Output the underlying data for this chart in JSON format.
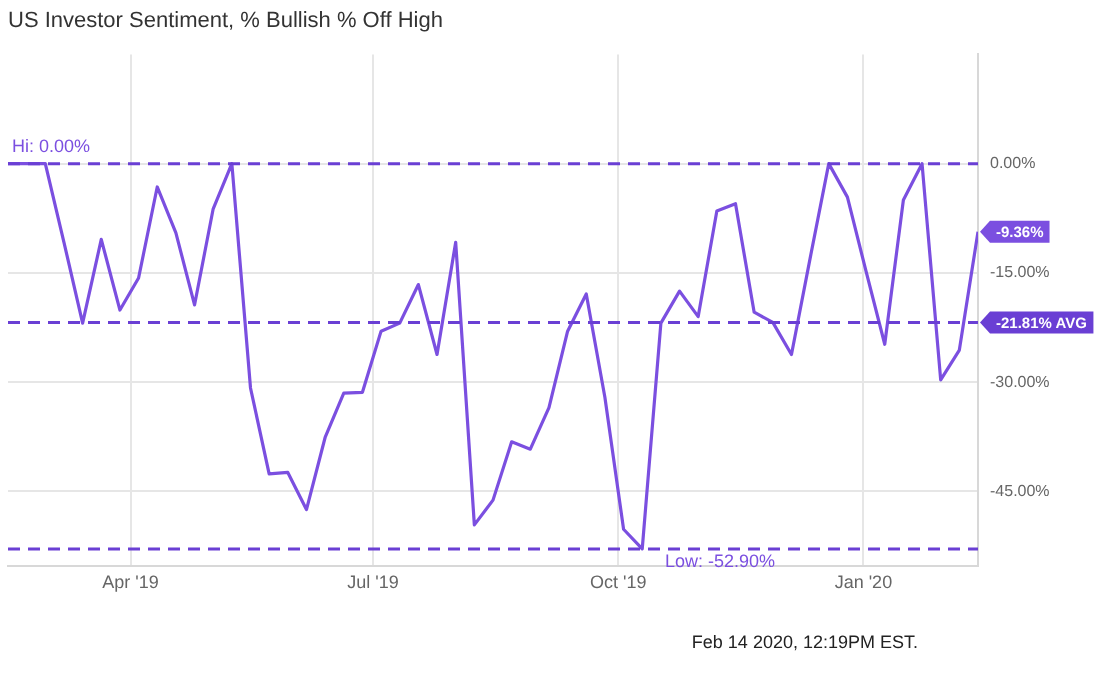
{
  "chart_data": {
    "type": "line",
    "title": "US Investor Sentiment, % Bullish % Off High",
    "x": [
      "2019-02-14",
      "2019-02-21",
      "2019-02-28",
      "2019-03-07",
      "2019-03-14",
      "2019-03-21",
      "2019-03-28",
      "2019-04-04",
      "2019-04-11",
      "2019-04-18",
      "2019-04-25",
      "2019-05-02",
      "2019-05-09",
      "2019-05-16",
      "2019-05-23",
      "2019-05-30",
      "2019-06-06",
      "2019-06-13",
      "2019-06-20",
      "2019-06-27",
      "2019-07-04",
      "2019-07-11",
      "2019-07-18",
      "2019-07-25",
      "2019-08-01",
      "2019-08-08",
      "2019-08-15",
      "2019-08-22",
      "2019-08-29",
      "2019-09-05",
      "2019-09-12",
      "2019-09-19",
      "2019-09-26",
      "2019-10-03",
      "2019-10-10",
      "2019-10-17",
      "2019-10-24",
      "2019-10-31",
      "2019-11-07",
      "2019-11-14",
      "2019-11-21",
      "2019-11-28",
      "2019-12-05",
      "2019-12-12",
      "2019-12-19",
      "2019-12-26",
      "2020-01-02",
      "2020-01-09",
      "2020-01-16",
      "2020-01-23",
      "2020-01-30",
      "2020-02-06",
      "2020-02-13"
    ],
    "series": [
      {
        "color": "#7b4fe0",
        "values": [
          0,
          0,
          0,
          -10.8,
          -21.9,
          -10.4,
          -20.1,
          -15.7,
          -3.2,
          -9.5,
          -19.4,
          -6.2,
          0,
          -30.8,
          -42.6,
          -42.4,
          -47.5,
          -37.6,
          -31.5,
          -31.4,
          -23.0,
          -21.9,
          -16.6,
          -26.2,
          -10.8,
          -49.6,
          -46.2,
          -38.2,
          -39.2,
          -33.5,
          -23.0,
          -17.9,
          -32.1,
          -50.2,
          -52.9,
          -21.9,
          -17.5,
          -21.0,
          -6.5,
          -5.5,
          -20.4,
          -21.8,
          -26.2,
          -13.0,
          0,
          -4.6,
          -14.8,
          -24.8,
          -5.0,
          0,
          -29.7,
          -25.6,
          -9.36
        ],
        "value_labels": [
          null,
          null,
          null,
          null,
          null,
          null,
          null,
          null,
          null,
          null,
          null,
          null,
          null,
          null,
          null,
          null,
          null,
          null,
          null,
          null,
          null,
          null,
          null,
          null,
          null,
          null,
          null,
          null,
          null,
          null,
          null,
          null,
          null,
          null,
          null,
          null,
          null,
          null,
          null,
          null,
          null,
          null,
          null,
          null,
          null,
          null,
          null,
          null,
          null,
          null,
          null,
          null,
          "-9.36%"
        ]
      }
    ],
    "xlim": [
      "2019-02-14",
      "2020-02-13"
    ],
    "xticks": [
      {
        "value": "2019-04-01",
        "label": "Apr '19"
      },
      {
        "value": "2019-07-01",
        "label": "Jul '19"
      },
      {
        "value": "2019-10-01",
        "label": "Oct '19"
      },
      {
        "value": "2020-01-01",
        "label": "Jan '20"
      }
    ],
    "ylim": [
      -55.3,
      15
    ],
    "yticks": [
      {
        "value": 0,
        "label": "0.00%"
      },
      {
        "value": -15,
        "label": "-15.00%"
      },
      {
        "value": -30,
        "label": "-30.00%"
      },
      {
        "value": -45,
        "label": "-45.00%"
      }
    ],
    "grid": true,
    "legend": false,
    "marker": "none",
    "line_style": "solid",
    "ref_lines": [
      {
        "axis": "y",
        "value": 0,
        "color": "#6a3fd4",
        "line_style": "dashed"
      },
      {
        "axis": "y",
        "value": -21.81,
        "label": "-21.81% AVG",
        "color": "#6a3fd4",
        "line_style": "dashed"
      },
      {
        "axis": "y",
        "value": -52.9,
        "color": "#6a3fd4",
        "line_style": "dashed"
      }
    ],
    "annotations": [
      {
        "text": "Hi: 0.00%",
        "x": "2019-02-14",
        "y": 0
      },
      {
        "text": "Low: -52.90%",
        "x": "2019-10-17",
        "y": -52.9
      },
      "Feb 14 2020, 12:19PM EST."
    ]
  }
}
